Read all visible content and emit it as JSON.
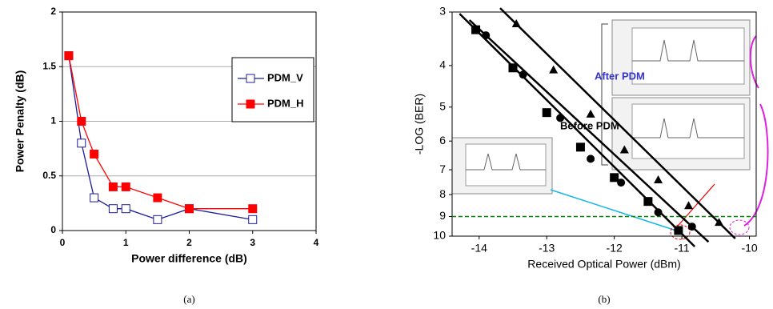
{
  "chart_data": [
    {
      "type": "line",
      "x_label": "Power difference (dB)",
      "y_label": "Power Penalty (dB)",
      "caption": "(a)",
      "x": [
        0.1,
        0.3,
        0.5,
        0.8,
        1,
        1.5,
        2,
        3
      ],
      "series": [
        {
          "name": "PDM_V",
          "color": "#1c1c9c",
          "marker": "square-open",
          "values": [
            1.6,
            0.8,
            0.3,
            0.2,
            0.2,
            0.1,
            0.2,
            0.1
          ]
        },
        {
          "name": "PDM_H",
          "color": "#ff0000",
          "marker": "square",
          "values": [
            1.6,
            1.0,
            0.7,
            0.4,
            0.4,
            0.3,
            0.2,
            0.2
          ]
        }
      ],
      "xlim": [
        0,
        4
      ],
      "xticks": [
        0,
        1,
        2,
        3,
        4
      ],
      "ylim": [
        0,
        2
      ],
      "yticks": [
        0,
        0.5,
        1,
        1.5,
        2
      ],
      "grid": true,
      "legend": "right"
    },
    {
      "type": "scatter",
      "x_label": "Received Optical Power (dBm)",
      "y_label": "-LOG (BER)",
      "caption": "(b)",
      "annotations": [
        "Before PDM",
        "After PDM"
      ],
      "series": [
        {
          "color": "#000000",
          "marker": "square",
          "x": [
            -14.05,
            -13.5,
            -13.0,
            -12.5,
            -12.0,
            -11.5,
            -11.05
          ],
          "values": [
            3.3,
            4.05,
            5.15,
            6.2,
            7.3,
            8.3,
            9.7
          ]
        },
        {
          "color": "#000000",
          "marker": "circle",
          "x": [
            -13.9,
            -13.35,
            -12.8,
            -12.35,
            -11.9,
            -11.35,
            -10.85
          ],
          "values": [
            3.4,
            4.2,
            5.3,
            6.6,
            7.5,
            8.8,
            9.5
          ]
        },
        {
          "color": "#000000",
          "marker": "triangle",
          "x": [
            -13.45,
            -12.9,
            -12.35,
            -11.85,
            -11.35,
            -10.9,
            -10.45
          ],
          "values": [
            3.2,
            4.1,
            5.2,
            6.3,
            7.4,
            8.5,
            9.3
          ]
        }
      ],
      "hline": 9,
      "hline_color": "#008000",
      "xlim": [
        -14.4,
        -9.9
      ],
      "xticks": [
        -14,
        -13,
        -12,
        -11,
        -10
      ],
      "ylim": [
        3,
        10
      ],
      "yticks": [
        3,
        4,
        5,
        6,
        7,
        8,
        9,
        10
      ],
      "yscale": "log",
      "yinvert": true
    }
  ]
}
